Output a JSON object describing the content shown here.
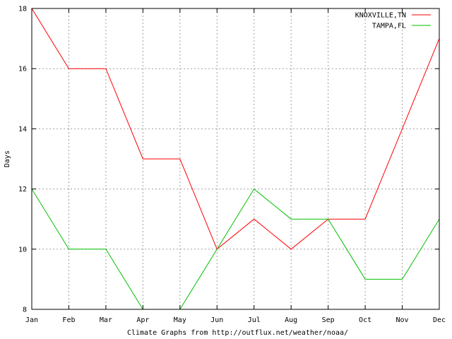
{
  "chart_data": {
    "type": "line",
    "categories": [
      "Jan",
      "Feb",
      "Mar",
      "Apr",
      "May",
      "Jun",
      "Jul",
      "Aug",
      "Sep",
      "Oct",
      "Nov",
      "Dec"
    ],
    "series": [
      {
        "name": "KNOXVILLE,TN",
        "color": "#ff0000",
        "values": [
          18,
          16,
          16,
          13,
          13,
          10,
          11,
          10,
          11,
          11,
          14,
          17
        ]
      },
      {
        "name": "TAMPA,FL",
        "color": "#00c000",
        "values": [
          12,
          10,
          10,
          8,
          8,
          10,
          12,
          11,
          11,
          9,
          9,
          11
        ]
      }
    ],
    "ylim": [
      8,
      18
    ],
    "yticks": [
      "8",
      "10",
      "12",
      "14",
      "16",
      "18"
    ],
    "xlabel": "Climate Graphs from http://outflux.net/weather/noaa/",
    "ylabel": "Days",
    "grid": true,
    "legend_position": "top-right"
  }
}
